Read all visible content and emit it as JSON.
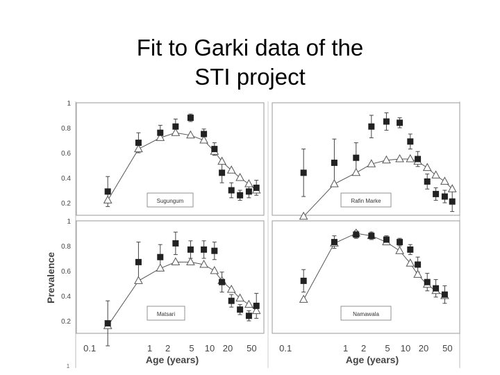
{
  "slide": {
    "title_line1": "Fit to Garki data of the",
    "title_line2": "STI project"
  },
  "figure": {
    "ylabel": "Prevalence",
    "xlabel": "Age (years)",
    "ytick_labels": [
      "1",
      "0.8",
      "0.6",
      "0.4",
      "0.2"
    ],
    "xtick_labels": [
      "0.1",
      "1",
      "2",
      "5",
      "10",
      "20",
      "50"
    ],
    "corner_mark": "1"
  },
  "colors": {
    "observed": "#222222",
    "model": "#555555",
    "panel_border": "#999999"
  },
  "chart_data": [
    {
      "type": "scatter",
      "panel": "Sugungum",
      "x_scale": "log",
      "xlim": [
        0.06,
        80
      ],
      "ylim": [
        0.1,
        1
      ],
      "x": [
        0.2,
        0.65,
        1.5,
        2.7,
        4.8,
        8,
        12,
        16,
        23,
        32,
        45,
        60
      ],
      "series": [
        {
          "values": [
            0.29,
            0.68,
            0.76,
            0.81,
            0.88,
            0.75,
            0.63,
            0.44,
            0.3,
            0.26,
            0.29,
            0.32
          ],
          "errors": [
            0.12,
            0.08,
            0.06,
            0.06,
            0.03,
            0.04,
            0.05,
            0.08,
            0.06,
            0.04,
            0.05,
            0.06
          ]
        },
        {
          "values": [
            0.22,
            0.63,
            0.72,
            0.76,
            0.74,
            0.7,
            0.61,
            0.53,
            0.46,
            0.4,
            0.35,
            0.3
          ]
        }
      ]
    },
    {
      "type": "scatter",
      "panel": "Rafin Marke",
      "x_scale": "log",
      "xlim": [
        0.06,
        80
      ],
      "ylim": [
        0.1,
        1
      ],
      "x": [
        0.2,
        0.65,
        1.5,
        2.7,
        4.8,
        8,
        12,
        16,
        23,
        32,
        45,
        60
      ],
      "series": [
        {
          "values": [
            0.44,
            0.52,
            0.56,
            0.81,
            0.85,
            0.84,
            0.69,
            0.55,
            0.37,
            0.27,
            0.25,
            0.21
          ],
          "errors": [
            0.19,
            0.19,
            0.12,
            0.09,
            0.07,
            0.04,
            0.06,
            0.06,
            0.06,
            0.05,
            0.05,
            0.08
          ]
        },
        {
          "values": [
            0.09,
            0.35,
            0.44,
            0.51,
            0.54,
            0.55,
            0.55,
            0.53,
            0.48,
            0.42,
            0.37,
            0.31
          ]
        }
      ]
    },
    {
      "type": "scatter",
      "panel": "Matsari",
      "x_scale": "log",
      "xlim": [
        0.06,
        80
      ],
      "ylim": [
        0.1,
        1
      ],
      "x": [
        0.2,
        0.65,
        1.5,
        2.7,
        4.8,
        8,
        12,
        16,
        23,
        32,
        45,
        60
      ],
      "series": [
        {
          "values": [
            0.18,
            0.67,
            0.71,
            0.82,
            0.77,
            0.77,
            0.76,
            0.51,
            0.36,
            0.29,
            0.24,
            0.32
          ],
          "errors": [
            0.18,
            0.16,
            0.1,
            0.09,
            0.07,
            0.07,
            0.07,
            0.08,
            0.05,
            0.04,
            0.04,
            0.1
          ]
        },
        {
          "values": [
            0.16,
            0.52,
            0.62,
            0.67,
            0.67,
            0.65,
            0.6,
            0.52,
            0.45,
            0.38,
            0.33,
            0.28
          ]
        }
      ]
    },
    {
      "type": "scatter",
      "panel": "Namawala",
      "x_scale": "log",
      "xlim": [
        0.06,
        80
      ],
      "ylim": [
        0.1,
        1
      ],
      "x": [
        0.2,
        0.65,
        1.5,
        2.7,
        4.8,
        8,
        12,
        16,
        23,
        32,
        45
      ],
      "series": [
        {
          "values": [
            0.52,
            0.83,
            0.89,
            0.88,
            0.85,
            0.83,
            0.77,
            0.65,
            0.51,
            0.46,
            0.41
          ],
          "errors": [
            0.09,
            0.05,
            0.03,
            0.03,
            0.03,
            0.03,
            0.04,
            0.06,
            0.07,
            0.07,
            0.07
          ]
        },
        {
          "values": [
            0.37,
            0.82,
            0.9,
            0.88,
            0.83,
            0.76,
            0.66,
            0.57,
            0.49,
            0.44,
            0.4
          ]
        }
      ]
    }
  ]
}
